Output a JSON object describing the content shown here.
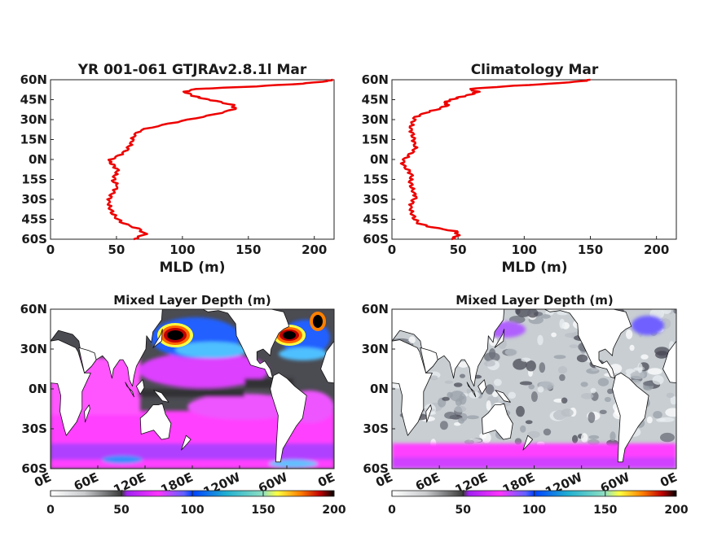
{
  "chart_data": [
    {
      "type": "line",
      "title": "YR 001-061 GTJRAv2.8.1l Mar",
      "xlabel": "MLD (m)",
      "xlim": [
        0,
        215
      ],
      "xticks": [
        "0",
        "50",
        "100",
        "150",
        "200"
      ],
      "ylim": [
        -60,
        60
      ],
      "yticks": [
        "60N",
        "45N",
        "30N",
        "15N",
        "0N",
        "15S",
        "30S",
        "45S",
        "60S"
      ],
      "color": "#ee0000",
      "series": [
        {
          "lat": [
            -60,
            -56,
            -52,
            -48,
            -44,
            -40,
            -36,
            -32,
            -28,
            -24,
            -20,
            -16,
            -12,
            -8,
            -4,
            -1,
            2,
            6,
            10,
            14,
            18,
            22,
            26,
            30,
            34,
            38,
            41,
            44,
            46,
            48,
            51,
            53,
            55,
            57,
            59,
            60
          ],
          "mld": [
            63,
            72,
            66,
            55,
            50,
            47,
            45,
            44,
            45,
            48,
            51,
            48,
            49,
            51,
            47,
            44,
            50,
            57,
            60,
            62,
            63,
            68,
            85,
            105,
            125,
            140,
            138,
            125,
            115,
            108,
            102,
            110,
            155,
            190,
            210,
            214
          ]
        }
      ]
    },
    {
      "type": "line",
      "title": "Climatology Mar",
      "xlabel": "MLD (m)",
      "xlim": [
        0,
        215
      ],
      "xticks": [
        "0",
        "50",
        "100",
        "150",
        "200"
      ],
      "ylim": [
        -60,
        60
      ],
      "yticks": [
        "60N",
        "45N",
        "30N",
        "15N",
        "0N",
        "15S",
        "30S",
        "45S",
        "60S"
      ],
      "color": "#ee0000",
      "series": [
        {
          "lat": [
            -60,
            -57,
            -54,
            -51,
            -48,
            -44,
            -40,
            -36,
            -32,
            -28,
            -24,
            -20,
            -16,
            -12,
            -8,
            -4,
            0,
            4,
            8,
            12,
            16,
            20,
            24,
            28,
            32,
            35,
            38,
            41,
            43,
            45,
            47,
            49,
            51,
            53,
            55,
            57,
            59,
            60
          ],
          "mld": [
            45,
            50,
            48,
            30,
            20,
            17,
            15,
            14,
            15,
            18,
            16,
            15,
            14,
            15,
            12,
            8,
            9,
            14,
            18,
            17,
            16,
            15,
            14,
            16,
            18,
            25,
            35,
            42,
            40,
            45,
            52,
            60,
            65,
            58,
            85,
            120,
            145,
            150
          ]
        }
      ]
    },
    {
      "type": "heatmap",
      "title": "Mixed Layer Depth (m)",
      "ylim": [
        -60,
        60
      ],
      "yticks": [
        "60N",
        "30N",
        "0N",
        "30S",
        "60S"
      ],
      "xticks": [
        "0E",
        "60E",
        "120E",
        "180E",
        "120W",
        "60W",
        "0E"
      ],
      "colorbar": {
        "range": [
          0,
          200
        ],
        "ticks": [
          "0",
          "50",
          "100",
          "150",
          "200"
        ]
      }
    },
    {
      "type": "heatmap",
      "title": "Mixed Layer Depth (m)",
      "ylim": [
        -60,
        60
      ],
      "yticks": [
        "60N",
        "30N",
        "0N",
        "30S",
        "60S"
      ],
      "xticks": [
        "0E",
        "60E",
        "120E",
        "180E",
        "120W",
        "60W",
        "0E"
      ],
      "colorbar": {
        "range": [
          0,
          200
        ],
        "ticks": [
          "0",
          "50",
          "100",
          "150",
          "200"
        ]
      }
    }
  ]
}
